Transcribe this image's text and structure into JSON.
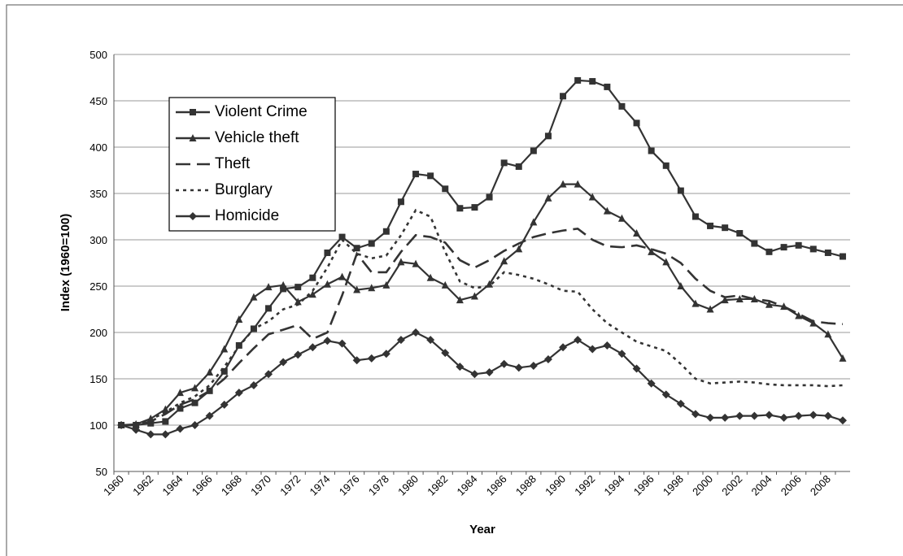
{
  "chart_data": {
    "type": "line",
    "x_label": "Year",
    "y_label": "Index (1960=100)",
    "categories": [
      "1960",
      null,
      "1962",
      null,
      "1964",
      null,
      "1966",
      null,
      "1968",
      null,
      "1970",
      null,
      "1972",
      null,
      "1974",
      null,
      "1976",
      null,
      "1978",
      null,
      "1980",
      null,
      "1982",
      null,
      "1984",
      null,
      "1986",
      null,
      "1988",
      null,
      "1990",
      null,
      "1992",
      null,
      "1994",
      null,
      "1996",
      null,
      "1998",
      null,
      "2000",
      null,
      "2002",
      null,
      "2004",
      null,
      "2006",
      null,
      "2008",
      null
    ],
    "ylim": [
      50,
      500
    ],
    "yticks": [
      50,
      100,
      150,
      200,
      250,
      300,
      350,
      400,
      450,
      500
    ],
    "grid": true,
    "legend": "upper left",
    "series": [
      {
        "name": "Violent Crime",
        "color": "#333333",
        "marker": "square",
        "dash": "solid",
        "values": [
          100,
          100,
          102,
          104,
          118,
          124,
          137,
          158,
          186,
          204,
          226,
          247,
          249,
          259,
          286,
          303,
          291,
          296,
          309,
          341,
          371,
          369,
          355,
          334,
          335,
          346,
          383,
          379,
          396,
          412,
          455,
          472,
          471,
          465,
          444,
          426,
          396,
          380,
          353,
          325,
          315,
          313,
          307,
          296,
          287,
          292,
          294,
          290,
          286,
          282
        ]
      },
      {
        "name": "Vehicle theft",
        "color": "#333333",
        "marker": "triangle",
        "dash": "solid",
        "values": [
          100,
          101,
          107,
          117,
          135,
          140,
          157,
          182,
          214,
          238,
          249,
          251,
          233,
          241,
          252,
          260,
          246,
          248,
          251,
          276,
          274,
          259,
          251,
          235,
          239,
          252,
          277,
          290,
          319,
          345,
          360,
          360,
          346,
          331,
          323,
          307,
          287,
          276,
          250,
          231,
          225,
          235,
          236,
          236,
          230,
          228,
          218,
          210,
          198,
          172
        ]
      },
      {
        "name": "Theft",
        "color": "#333333",
        "marker": "none",
        "dash": "long",
        "values": [
          100,
          100,
          104,
          112,
          122,
          128,
          137,
          150,
          167,
          183,
          198,
          203,
          208,
          193,
          200,
          240,
          285,
          265,
          265,
          287,
          305,
          303,
          297,
          278,
          270,
          278,
          288,
          296,
          303,
          307,
          310,
          312,
          300,
          293,
          292,
          294,
          290,
          285,
          275,
          258,
          245,
          238,
          240,
          236,
          234,
          228,
          220,
          212,
          210,
          209
        ]
      },
      {
        "name": "Burglary",
        "color": "#333333",
        "marker": "none",
        "dash": "dot",
        "values": [
          100,
          100,
          106,
          114,
          124,
          131,
          143,
          163,
          185,
          204,
          212,
          225,
          230,
          245,
          270,
          300,
          285,
          280,
          283,
          305,
          332,
          325,
          287,
          255,
          248,
          250,
          265,
          262,
          258,
          252,
          245,
          244,
          225,
          210,
          200,
          190,
          185,
          180,
          166,
          150,
          145,
          146,
          147,
          146,
          144,
          143,
          143,
          143,
          142,
          143
        ]
      },
      {
        "name": "Homicide",
        "color": "#333333",
        "marker": "diamond",
        "dash": "solid",
        "values": [
          100,
          95,
          90,
          90,
          96,
          100,
          110,
          122,
          135,
          143,
          155,
          168,
          176,
          184,
          191,
          188,
          170,
          172,
          177,
          192,
          200,
          192,
          178,
          163,
          155,
          157,
          166,
          162,
          164,
          171,
          184,
          192,
          182,
          186,
          177,
          161,
          145,
          133,
          123,
          112,
          108,
          108,
          110,
          110,
          111,
          108,
          110,
          111,
          110,
          105
        ]
      }
    ]
  }
}
